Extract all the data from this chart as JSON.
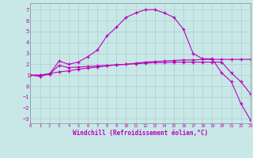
{
  "background_color": "#c8e8e8",
  "grid_color": "#b0cccc",
  "line_color": "#bb00bb",
  "xlabel": "Windchill (Refroidissement éolien,°C)",
  "xlim": [
    0,
    23
  ],
  "ylim": [
    -3.4,
    7.6
  ],
  "yticks": [
    -3,
    -2,
    -1,
    0,
    1,
    2,
    3,
    4,
    5,
    6,
    7
  ],
  "xticks": [
    0,
    1,
    2,
    3,
    4,
    5,
    6,
    7,
    8,
    9,
    10,
    11,
    12,
    13,
    14,
    15,
    16,
    17,
    18,
    19,
    20,
    21,
    22,
    23
  ],
  "series1_x": [
    0,
    1,
    2,
    3,
    4,
    5,
    6,
    7,
    8,
    9,
    10,
    11,
    12,
    13,
    14,
    15,
    16,
    17,
    18,
    19,
    20,
    21,
    22,
    23
  ],
  "series1_y": [
    1.0,
    1.0,
    1.15,
    1.3,
    1.4,
    1.55,
    1.65,
    1.75,
    1.85,
    1.95,
    2.0,
    2.1,
    2.2,
    2.25,
    2.3,
    2.35,
    2.4,
    2.4,
    2.45,
    2.45,
    2.45,
    2.45,
    2.45,
    2.45
  ],
  "series2_x": [
    0,
    1,
    2,
    3,
    4,
    5,
    6,
    7,
    8,
    9,
    10,
    11,
    12,
    13,
    14,
    15,
    16,
    17,
    18,
    19,
    20,
    21,
    22,
    23
  ],
  "series2_y": [
    1.0,
    1.0,
    1.1,
    1.9,
    1.7,
    1.75,
    1.8,
    1.85,
    1.9,
    1.95,
    2.0,
    2.05,
    2.1,
    2.15,
    2.15,
    2.2,
    2.2,
    2.2,
    2.2,
    2.2,
    2.2,
    1.2,
    0.4,
    -0.7
  ],
  "series3_x": [
    0,
    1,
    2,
    3,
    4,
    5,
    6,
    7,
    8,
    9,
    10,
    11,
    12,
    13,
    14,
    15,
    16,
    17,
    18,
    19,
    20,
    21,
    22,
    23
  ],
  "series3_y": [
    1.0,
    0.9,
    1.1,
    2.3,
    2.0,
    2.2,
    2.7,
    3.3,
    4.6,
    5.4,
    6.3,
    6.7,
    7.0,
    7.0,
    6.7,
    6.3,
    5.2,
    3.0,
    2.5,
    2.5,
    1.2,
    0.4,
    -1.6,
    -3.1
  ]
}
